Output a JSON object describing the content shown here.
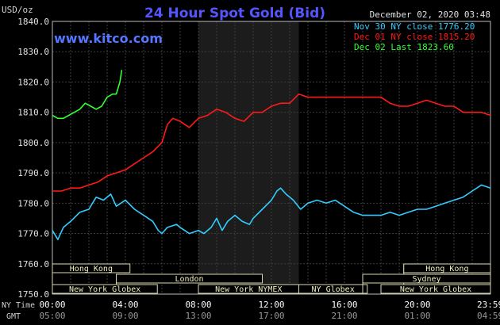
{
  "header": {
    "y_unit": "USD/oz",
    "title": "24 Hour Spot Gold (Bid)",
    "timestamp": "December 02, 2020 03:48",
    "watermark": "www.kitco.com"
  },
  "legend": [
    {
      "label": "Nov 30 NY close 1776.20",
      "color": "#33ccff"
    },
    {
      "label": "Dec 01 NY close 1815.20",
      "color": "#ff1a1a"
    },
    {
      "label": "Dec 02 Last 1823.60",
      "color": "#33ff33"
    }
  ],
  "axis_row_labels": {
    "ny_time": "NY Time",
    "gmt": "GMT"
  },
  "sessions": [
    {
      "label": "Hong Kong",
      "start_h": 0,
      "end_h": 4.25,
      "row": 0
    },
    {
      "label": "London",
      "start_h": 3.5,
      "end_h": 11.5,
      "row": 1
    },
    {
      "label": "New York Globex",
      "start_h": 0,
      "end_h": 5.75,
      "row": 2
    },
    {
      "label": "New York NYMEX",
      "start_h": 8,
      "end_h": 13.5,
      "row": 2
    },
    {
      "label": "NY Globex",
      "start_h": 13.5,
      "end_h": 17.25,
      "row": 2
    },
    {
      "label": "Hong Kong",
      "start_h": 19.25,
      "end_h": 24,
      "row": 0
    },
    {
      "label": "Sydney",
      "start_h": 17,
      "end_h": 24,
      "row": 1
    },
    {
      "label": "New York Globex",
      "start_h": 18,
      "end_h": 24,
      "row": 2
    }
  ],
  "shaded_region": {
    "start_h": 8,
    "end_h": 13.5
  },
  "chart_data": {
    "type": "line",
    "title": "24 Hour Spot Gold (Bid)",
    "ylabel": "USD/oz",
    "ylim": [
      1750,
      1840
    ],
    "yticks": [
      "1750.0",
      "1760.0",
      "1770.0",
      "1780.0",
      "1790.0",
      "1800.0",
      "1810.0",
      "1820.0",
      "1830.0",
      "1840.0"
    ],
    "xlim": [
      0,
      24
    ],
    "xticks": [
      {
        "h": 0,
        "ny": "00:00",
        "gmt": "05:00"
      },
      {
        "h": 4,
        "ny": "04:00",
        "gmt": "09:00"
      },
      {
        "h": 8,
        "ny": "08:00",
        "gmt": "13:00"
      },
      {
        "h": 12,
        "ny": "12:00",
        "gmt": "17:00"
      },
      {
        "h": 16,
        "ny": "16:00",
        "gmt": "21:00"
      },
      {
        "h": 20,
        "ny": "20:00",
        "gmt": "01:00"
      },
      {
        "h": 23.98,
        "ny": "23:59",
        "gmt": "04:59"
      }
    ],
    "grid": true,
    "series": [
      {
        "name": "Nov 30 NY close 1776.20",
        "color": "#33ccff",
        "points": [
          [
            0,
            1771
          ],
          [
            0.3,
            1768
          ],
          [
            0.6,
            1772
          ],
          [
            1,
            1774
          ],
          [
            1.5,
            1777
          ],
          [
            2,
            1778
          ],
          [
            2.4,
            1782
          ],
          [
            2.8,
            1781
          ],
          [
            3.2,
            1783
          ],
          [
            3.5,
            1779
          ],
          [
            4,
            1781
          ],
          [
            4.5,
            1778
          ],
          [
            5,
            1776
          ],
          [
            5.5,
            1774
          ],
          [
            5.8,
            1771
          ],
          [
            6,
            1770
          ],
          [
            6.3,
            1772
          ],
          [
            6.8,
            1773
          ],
          [
            7,
            1772
          ],
          [
            7.5,
            1770
          ],
          [
            8,
            1771
          ],
          [
            8.3,
            1770
          ],
          [
            8.7,
            1772
          ],
          [
            9,
            1775
          ],
          [
            9.3,
            1771
          ],
          [
            9.6,
            1774
          ],
          [
            10,
            1776
          ],
          [
            10.4,
            1774
          ],
          [
            10.8,
            1773
          ],
          [
            11,
            1775
          ],
          [
            11.5,
            1778
          ],
          [
            12,
            1781
          ],
          [
            12.3,
            1784
          ],
          [
            12.5,
            1785
          ],
          [
            12.8,
            1783
          ],
          [
            13.2,
            1781
          ],
          [
            13.6,
            1778
          ],
          [
            14,
            1780
          ],
          [
            14.5,
            1781
          ],
          [
            15,
            1780
          ],
          [
            15.5,
            1781
          ],
          [
            16,
            1779
          ],
          [
            16.5,
            1777
          ],
          [
            17,
            1776
          ],
          [
            17.5,
            1776
          ],
          [
            18,
            1776
          ],
          [
            18.5,
            1777
          ],
          [
            19,
            1776
          ],
          [
            19.5,
            1777
          ],
          [
            20,
            1778
          ],
          [
            20.5,
            1778
          ],
          [
            21,
            1779
          ],
          [
            21.5,
            1780
          ],
          [
            22,
            1781
          ],
          [
            22.5,
            1782
          ],
          [
            23,
            1784
          ],
          [
            23.5,
            1786
          ],
          [
            24,
            1785
          ]
        ]
      },
      {
        "name": "Dec 01 NY close 1815.20",
        "color": "#ff1a1a",
        "points": [
          [
            0,
            1784
          ],
          [
            0.5,
            1784
          ],
          [
            1,
            1785
          ],
          [
            1.5,
            1785
          ],
          [
            2,
            1786
          ],
          [
            2.5,
            1787
          ],
          [
            3,
            1789
          ],
          [
            3.5,
            1790
          ],
          [
            4,
            1791
          ],
          [
            4.5,
            1793
          ],
          [
            5,
            1795
          ],
          [
            5.5,
            1797
          ],
          [
            6,
            1800
          ],
          [
            6.3,
            1806
          ],
          [
            6.6,
            1808
          ],
          [
            7,
            1807
          ],
          [
            7.5,
            1805
          ],
          [
            8,
            1808
          ],
          [
            8.5,
            1809
          ],
          [
            9,
            1811
          ],
          [
            9.5,
            1810
          ],
          [
            10,
            1808
          ],
          [
            10.5,
            1807
          ],
          [
            11,
            1810
          ],
          [
            11.5,
            1810
          ],
          [
            12,
            1812
          ],
          [
            12.5,
            1813
          ],
          [
            13,
            1813
          ],
          [
            13.5,
            1816
          ],
          [
            14,
            1815
          ],
          [
            14.5,
            1815
          ],
          [
            15,
            1815
          ],
          [
            15.5,
            1815
          ],
          [
            16,
            1815
          ],
          [
            16.5,
            1815
          ],
          [
            17,
            1815
          ],
          [
            17.5,
            1815
          ],
          [
            18,
            1815
          ],
          [
            18.5,
            1813
          ],
          [
            19,
            1812
          ],
          [
            19.5,
            1812
          ],
          [
            20,
            1813
          ],
          [
            20.5,
            1814
          ],
          [
            21,
            1813
          ],
          [
            21.5,
            1812
          ],
          [
            22,
            1812
          ],
          [
            22.5,
            1810
          ],
          [
            23,
            1810
          ],
          [
            23.5,
            1810
          ],
          [
            24,
            1809
          ]
        ]
      },
      {
        "name": "Dec 02 Last 1823.60",
        "color": "#33ff33",
        "points": [
          [
            0,
            1809
          ],
          [
            0.3,
            1808
          ],
          [
            0.6,
            1808
          ],
          [
            0.9,
            1809
          ],
          [
            1.2,
            1810
          ],
          [
            1.5,
            1811
          ],
          [
            1.8,
            1813
          ],
          [
            2.1,
            1812
          ],
          [
            2.4,
            1811
          ],
          [
            2.7,
            1812
          ],
          [
            3,
            1815
          ],
          [
            3.3,
            1816
          ],
          [
            3.5,
            1816
          ],
          [
            3.7,
            1820
          ],
          [
            3.8,
            1824
          ]
        ]
      }
    ]
  }
}
